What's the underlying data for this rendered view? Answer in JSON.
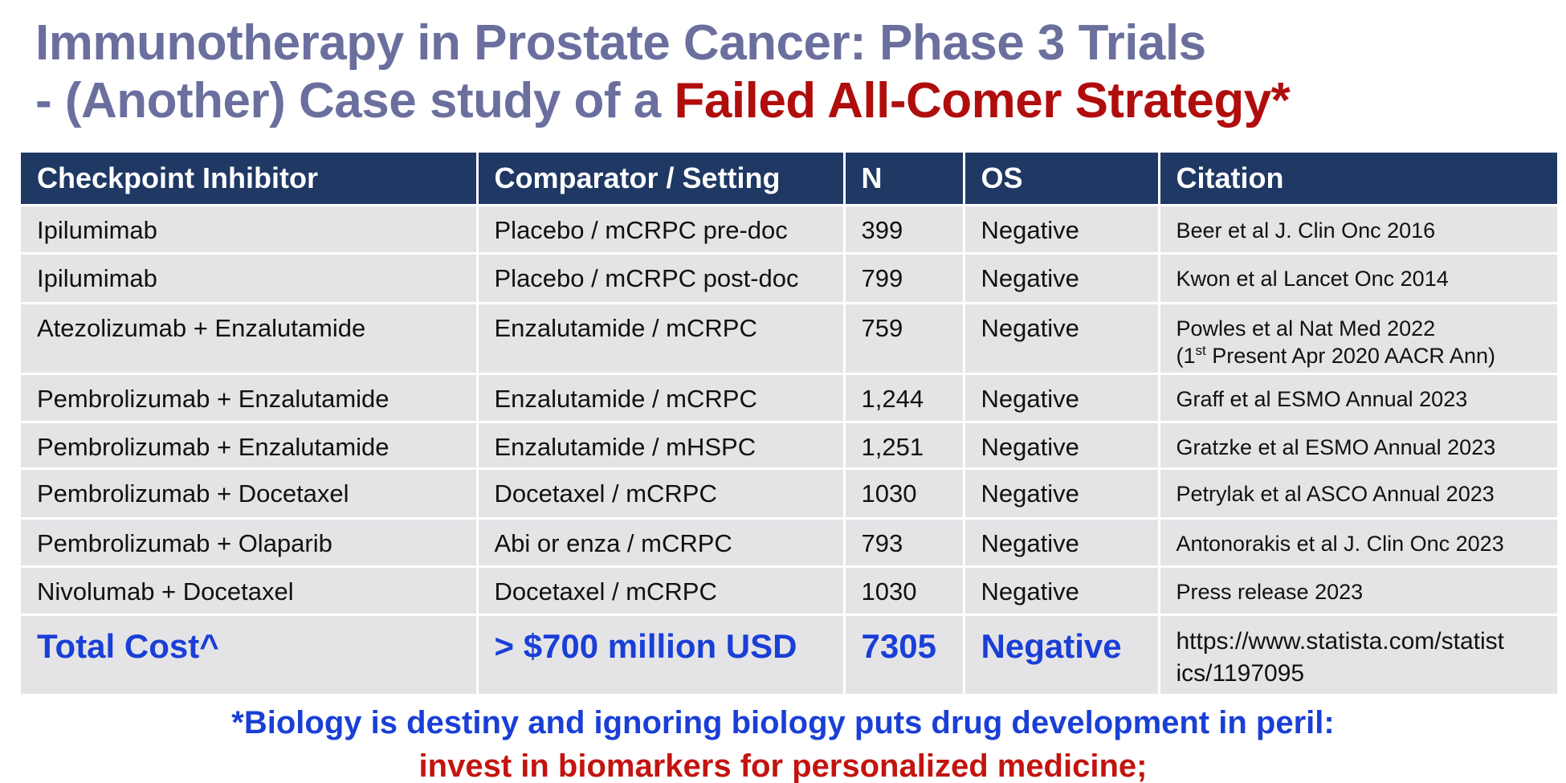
{
  "slide": {
    "title_line1": "Immunotherapy in Prostate Cancer: Phase 3 Trials",
    "title_line2_prefix": "- (Another) Case study of a ",
    "title_line2_accent": "Failed All-Comer Strategy*",
    "title_color": "#6b6f9e",
    "accent_color": "#b00d0d"
  },
  "table": {
    "header_color": "#1f3864",
    "row_color": "#e4e4e7",
    "headers": [
      "Checkpoint Inhibitor",
      "Comparator / Setting",
      "N",
      "OS",
      "Citation"
    ],
    "rows": [
      {
        "inhibitor": "Ipilumimab",
        "comparator": "Placebo / mCRPC pre-doc",
        "n": "399",
        "os": "Negative",
        "citation": "Beer et al J. Clin Onc 2016"
      },
      {
        "inhibitor": "Ipilumimab",
        "comparator": "Placebo / mCRPC post-doc",
        "n": "799",
        "os": "Negative",
        "citation": "Kwon et al Lancet Onc 2014"
      },
      {
        "inhibitor": "Atezolizumab + Enzalutamide",
        "comparator": "Enzalutamide / mCRPC",
        "n": "759",
        "os": "Negative",
        "citation": "Powles et al Nat Med 2022",
        "citation_note_prefix": "(1",
        "citation_note_sup": "st",
        "citation_note_suffix": " Present Apr 2020 AACR Ann)"
      },
      {
        "inhibitor": "Pembrolizumab + Enzalutamide",
        "comparator": "Enzalutamide / mCRPC",
        "n": "1,244",
        "os": "Negative",
        "citation": "Graff et al ESMO Annual 2023"
      },
      {
        "inhibitor": "Pembrolizumab + Enzalutamide",
        "comparator": "Enzalutamide / mHSPC",
        "n": "1,251",
        "os": "Negative",
        "citation": "Gratzke et al ESMO Annual 2023"
      },
      {
        "inhibitor": "Pembrolizumab + Docetaxel",
        "comparator": "Docetaxel / mCRPC",
        "n": "1030",
        "os": "Negative",
        "citation": "Petrylak et al ASCO Annual 2023"
      },
      {
        "inhibitor": "Pembrolizumab + Olaparib",
        "comparator": "Abi or enza / mCRPC",
        "n": "793",
        "os": "Negative",
        "citation": "Antonorakis et al J. Clin Onc 2023"
      },
      {
        "inhibitor": "Nivolumab + Docetaxel",
        "comparator": "Docetaxel / mCRPC",
        "n": "1030",
        "os": "Negative",
        "citation": "Press release 2023"
      }
    ],
    "total": {
      "label": "Total Cost^",
      "cost": "> $700 million USD",
      "n": "7305",
      "os": "Negative",
      "citation_line1": "https://www.statista.com/statist",
      "citation_line2": "ics/1197095",
      "color": "#1a3fd6"
    }
  },
  "footnote": {
    "line1": "*Biology is destiny and ignoring biology puts drug development in peril:",
    "line2": "invest in biomarkers for personalized medicine;",
    "line1_color": "#1a3fd6",
    "line2_color": "#c3140f"
  }
}
